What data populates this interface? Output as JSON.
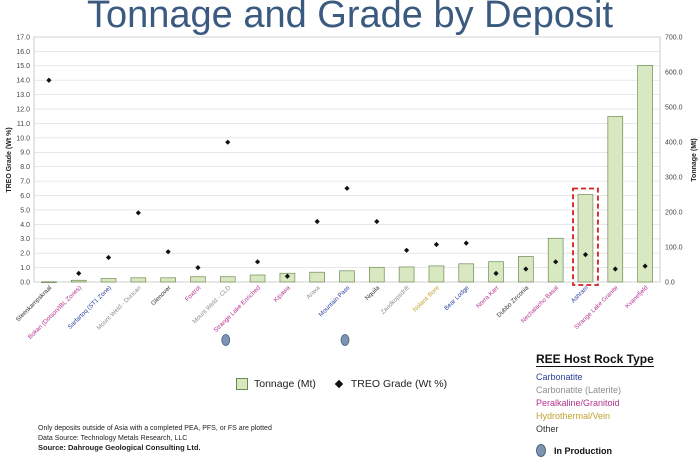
{
  "chart_data": {
    "type": "bar",
    "title": "Tonnage and Grade by Deposit",
    "ylabel_left": "TREO Grade (Wt %)",
    "ylabel_right": "Tonnage (Mt)",
    "ylim_left": [
      0,
      17
    ],
    "ylim_right": [
      0,
      700
    ],
    "yticks_left": [
      "0.0",
      "1.0",
      "2.0",
      "3.0",
      "4.0",
      "5.0",
      "6.0",
      "7.0",
      "8.0",
      "9.0",
      "10.0",
      "11.0",
      "12.0",
      "13.0",
      "14.0",
      "15.0",
      "16.0",
      "17.0"
    ],
    "yticks_right": [
      "0.0",
      "100.0",
      "200.0",
      "300.0",
      "400.0",
      "500.0",
      "600.0",
      "700.0"
    ],
    "categories": [
      "Steenkampskraal",
      "Bokan (Dotson/IBL Zones)",
      "Sarfartoq (ST1 Zone)",
      "Mount Weld - Duncan",
      "Glenover",
      "Foxtrot",
      "Mount Weld - CLD",
      "Strange Lake Enriched",
      "Kipawa",
      "Araxa",
      "Mountain Pass",
      "Nquila",
      "Zandkopsdrift",
      "Nolans Bore",
      "Bear Lodge",
      "Norra Karr",
      "Dubbo Zirconia",
      "Nechalacho Basal",
      "Ashram",
      "Strange Lake Granite",
      "Kvanefjeld"
    ],
    "host_type": [
      "Other",
      "Peralkaline",
      "Carbonatite",
      "Laterite",
      "Other",
      "Peralkaline",
      "Laterite",
      "Peralkaline",
      "Peralkaline",
      "Laterite",
      "Carbonatite",
      "Other",
      "Laterite",
      "Hydrothermal",
      "Carbonatite",
      "Peralkaline",
      "Other",
      "Peralkaline",
      "Carbonatite",
      "Peralkaline",
      "Peralkaline"
    ],
    "in_production": [
      "Mount Weld - CLD",
      "Mountain Pass"
    ],
    "highlighted": [
      "Ashram"
    ],
    "series": [
      {
        "name": "Tonnage (Mt)",
        "kind": "bar",
        "axis": "right",
        "values": [
          0.6,
          5,
          10,
          12,
          12,
          15,
          15,
          20,
          25,
          28,
          32,
          42,
          43,
          46,
          52,
          58,
          73,
          125,
          250,
          473,
          619
        ]
      },
      {
        "name": "TREO Grade (Wt %)",
        "kind": "marker",
        "axis": "left",
        "values": [
          14.0,
          0.6,
          1.7,
          4.8,
          2.1,
          1.0,
          9.7,
          1.4,
          0.4,
          4.2,
          6.5,
          4.2,
          2.2,
          2.6,
          2.7,
          0.6,
          0.9,
          1.4,
          1.9,
          0.9,
          1.1
        ]
      }
    ]
  },
  "legend": {
    "tonnage": "Tonnage (Mt)",
    "grade": "TREO Grade (Wt %)"
  },
  "host_legend": {
    "title": "REE Host Rock Type",
    "items": [
      {
        "key": "Carbonatite",
        "label": "Carbonatite",
        "color": "#2b3f9c"
      },
      {
        "key": "Laterite",
        "label": "Carbonatite (Laterite)",
        "color": "#8f8f8f"
      },
      {
        "key": "Peralkaline",
        "label": "Peralkaline/Granitoid",
        "color": "#b5338f"
      },
      {
        "key": "Hydrothermal",
        "label": "Hydrothermal/Vein",
        "color": "#c2a22e"
      },
      {
        "key": "Other",
        "label": "Other",
        "color": "#333333"
      }
    ],
    "production_label": "In Production"
  },
  "notes": {
    "line1": "Only deposits outside of Asia with a completed PEA, PFS, or FS are plotted",
    "line2": "Data Source: Technology Metals Research, LLC",
    "source": "Source: Dahrouge Geological Consulting Ltd."
  }
}
